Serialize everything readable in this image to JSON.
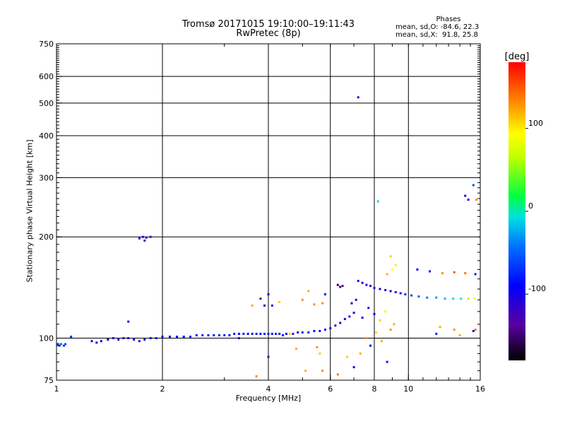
{
  "chart_data": {
    "type": "scatter",
    "title": "Tromsø 20171015 19:10:00–19:11:43",
    "subtitle": "RwPretec (8p)",
    "xlabel": "Frequency [MHz]",
    "ylabel": "Stationary phase Virtual Height [km]",
    "x_scale": "log",
    "y_scale": "log",
    "xlim": [
      1,
      16
    ],
    "ylim": [
      75,
      750
    ],
    "x_ticks": [
      1,
      2,
      4,
      6,
      8,
      10,
      16
    ],
    "x_tick_labels": [
      "1",
      "2",
      "4",
      "6",
      "8",
      "10",
      "16"
    ],
    "y_ticks": [
      75,
      100,
      200,
      300,
      400,
      500,
      600,
      750
    ],
    "y_tick_labels": [
      "75",
      "100",
      "200",
      "300",
      "400",
      "500",
      "600",
      "750"
    ],
    "grid": true,
    "phase_stats": {
      "title": "Phases",
      "line_o": "mean, sd,O: -84.6, 22.3",
      "line_x": "mean, sd,X:  91.8, 25.8"
    },
    "colorbar": {
      "label": "[deg]",
      "range": [
        -180,
        180
      ],
      "ticks": [
        100,
        0,
        -100
      ],
      "tick_labels": [
        "100",
        "0",
        "-100"
      ]
    },
    "echo_points": [
      {
        "x": 1.01,
        "y": 96,
        "phase": -70
      },
      {
        "x": 1.02,
        "y": 95,
        "phase": -60
      },
      {
        "x": 1.03,
        "y": 96,
        "phase": -50
      },
      {
        "x": 1.05,
        "y": 95,
        "phase": -70
      },
      {
        "x": 1.06,
        "y": 96,
        "phase": -60
      },
      {
        "x": 1.1,
        "y": 101,
        "phase": -70
      },
      {
        "x": 1.26,
        "y": 98,
        "phase": -100
      },
      {
        "x": 1.3,
        "y": 97,
        "phase": -110
      },
      {
        "x": 1.34,
        "y": 98,
        "phase": -100
      },
      {
        "x": 1.4,
        "y": 99,
        "phase": -90
      },
      {
        "x": 1.45,
        "y": 100,
        "phase": -100
      },
      {
        "x": 1.5,
        "y": 99,
        "phase": -110
      },
      {
        "x": 1.55,
        "y": 100,
        "phase": -100
      },
      {
        "x": 1.6,
        "y": 100,
        "phase": -90
      },
      {
        "x": 1.66,
        "y": 99,
        "phase": -100
      },
      {
        "x": 1.72,
        "y": 98,
        "phase": -110
      },
      {
        "x": 1.78,
        "y": 99,
        "phase": -100
      },
      {
        "x": 1.85,
        "y": 100,
        "phase": -90
      },
      {
        "x": 1.92,
        "y": 100,
        "phase": -100
      },
      {
        "x": 2.0,
        "y": 101,
        "phase": -90
      },
      {
        "x": 2.1,
        "y": 101,
        "phase": -95
      },
      {
        "x": 2.2,
        "y": 101,
        "phase": -100
      },
      {
        "x": 2.3,
        "y": 101,
        "phase": -90
      },
      {
        "x": 2.4,
        "y": 101,
        "phase": -80
      },
      {
        "x": 2.5,
        "y": 102,
        "phase": -90
      },
      {
        "x": 2.6,
        "y": 102,
        "phase": -85
      },
      {
        "x": 2.7,
        "y": 102,
        "phase": -80
      },
      {
        "x": 2.8,
        "y": 102,
        "phase": -90
      },
      {
        "x": 2.9,
        "y": 102,
        "phase": -85
      },
      {
        "x": 3.0,
        "y": 102,
        "phase": -80
      },
      {
        "x": 3.1,
        "y": 102,
        "phase": -90
      },
      {
        "x": 3.2,
        "y": 103,
        "phase": -85
      },
      {
        "x": 3.3,
        "y": 103,
        "phase": -90
      },
      {
        "x": 3.4,
        "y": 103,
        "phase": -80
      },
      {
        "x": 3.5,
        "y": 103,
        "phase": -90
      },
      {
        "x": 3.6,
        "y": 103,
        "phase": -85
      },
      {
        "x": 3.7,
        "y": 103,
        "phase": -80
      },
      {
        "x": 3.8,
        "y": 103,
        "phase": -90
      },
      {
        "x": 3.9,
        "y": 103,
        "phase": -85
      },
      {
        "x": 4.0,
        "y": 103,
        "phase": -80
      },
      {
        "x": 4.1,
        "y": 103,
        "phase": -90
      },
      {
        "x": 4.2,
        "y": 103,
        "phase": -85
      },
      {
        "x": 4.3,
        "y": 103,
        "phase": -80
      },
      {
        "x": 4.4,
        "y": 102,
        "phase": -90
      },
      {
        "x": 4.5,
        "y": 103,
        "phase": -85
      },
      {
        "x": 4.6,
        "y": 103,
        "phase": 110
      },
      {
        "x": 4.7,
        "y": 103,
        "phase": -80
      },
      {
        "x": 4.85,
        "y": 104,
        "phase": -90
      },
      {
        "x": 5.0,
        "y": 104,
        "phase": -85
      },
      {
        "x": 5.2,
        "y": 104,
        "phase": -80
      },
      {
        "x": 5.4,
        "y": 105,
        "phase": -90
      },
      {
        "x": 5.6,
        "y": 105,
        "phase": -85
      },
      {
        "x": 5.8,
        "y": 106,
        "phase": -90
      },
      {
        "x": 6.0,
        "y": 107,
        "phase": -100
      },
      {
        "x": 6.2,
        "y": 109,
        "phase": -110
      },
      {
        "x": 6.4,
        "y": 111,
        "phase": -100
      },
      {
        "x": 6.6,
        "y": 114,
        "phase": -110
      },
      {
        "x": 6.8,
        "y": 116,
        "phase": -100
      },
      {
        "x": 7.0,
        "y": 119,
        "phase": -110
      },
      {
        "x": 7.2,
        "y": 148,
        "phase": -110
      },
      {
        "x": 7.4,
        "y": 146,
        "phase": -100
      },
      {
        "x": 7.6,
        "y": 144,
        "phase": -110
      },
      {
        "x": 7.8,
        "y": 143,
        "phase": -100
      },
      {
        "x": 8.0,
        "y": 141,
        "phase": -110
      },
      {
        "x": 8.3,
        "y": 140,
        "phase": -100
      },
      {
        "x": 8.6,
        "y": 139,
        "phase": -110
      },
      {
        "x": 8.9,
        "y": 138,
        "phase": -100
      },
      {
        "x": 9.2,
        "y": 137,
        "phase": -90
      },
      {
        "x": 9.5,
        "y": 136,
        "phase": -80
      },
      {
        "x": 9.8,
        "y": 135,
        "phase": -70
      },
      {
        "x": 10.2,
        "y": 134,
        "phase": -60
      },
      {
        "x": 10.7,
        "y": 133,
        "phase": -50
      },
      {
        "x": 11.3,
        "y": 132,
        "phase": -40
      },
      {
        "x": 12.0,
        "y": 132,
        "phase": -30
      },
      {
        "x": 12.7,
        "y": 131,
        "phase": -20
      },
      {
        "x": 13.4,
        "y": 131,
        "phase": -10
      },
      {
        "x": 14.1,
        "y": 131,
        "phase": 0
      },
      {
        "x": 14.8,
        "y": 131,
        "phase": 60
      },
      {
        "x": 15.4,
        "y": 131,
        "phase": 90
      },
      {
        "x": 6.3,
        "y": 144,
        "phase": -160
      },
      {
        "x": 6.4,
        "y": 142,
        "phase": -150
      },
      {
        "x": 6.5,
        "y": 143,
        "phase": -140
      },
      {
        "x": 8.9,
        "y": 175,
        "phase": 110
      },
      {
        "x": 9.0,
        "y": 160,
        "phase": 90
      },
      {
        "x": 8.7,
        "y": 155,
        "phase": 120
      },
      {
        "x": 9.2,
        "y": 165,
        "phase": 100
      },
      {
        "x": 10.6,
        "y": 160,
        "phase": -90
      },
      {
        "x": 11.5,
        "y": 158,
        "phase": -80
      },
      {
        "x": 12.5,
        "y": 156,
        "phase": 130
      },
      {
        "x": 13.5,
        "y": 157,
        "phase": 150
      },
      {
        "x": 14.5,
        "y": 156,
        "phase": 140
      },
      {
        "x": 15.5,
        "y": 155,
        "phase": -80
      },
      {
        "x": 7.2,
        "y": 520,
        "phase": -100
      },
      {
        "x": 8.2,
        "y": 255,
        "phase": -10
      },
      {
        "x": 14.5,
        "y": 265,
        "phase": -110
      },
      {
        "x": 14.8,
        "y": 258,
        "phase": -100
      },
      {
        "x": 15.3,
        "y": 285,
        "phase": -60
      },
      {
        "x": 15.6,
        "y": 258,
        "phase": 130
      },
      {
        "x": 1.72,
        "y": 198,
        "phase": -110
      },
      {
        "x": 1.76,
        "y": 200,
        "phase": -100
      },
      {
        "x": 1.8,
        "y": 199,
        "phase": -110
      },
      {
        "x": 1.85,
        "y": 200,
        "phase": -120
      },
      {
        "x": 1.78,
        "y": 195,
        "phase": -130
      },
      {
        "x": 1.6,
        "y": 112,
        "phase": -100
      },
      {
        "x": 3.6,
        "y": 125,
        "phase": 120
      },
      {
        "x": 3.8,
        "y": 131,
        "phase": -130
      },
      {
        "x": 3.9,
        "y": 125,
        "phase": -110
      },
      {
        "x": 4.0,
        "y": 135,
        "phase": -90
      },
      {
        "x": 4.1,
        "y": 125,
        "phase": -100
      },
      {
        "x": 4.3,
        "y": 128,
        "phase": 110
      },
      {
        "x": 5.0,
        "y": 130,
        "phase": 130
      },
      {
        "x": 5.2,
        "y": 138,
        "phase": 120
      },
      {
        "x": 5.4,
        "y": 126,
        "phase": 130
      },
      {
        "x": 5.7,
        "y": 127,
        "phase": 130
      },
      {
        "x": 5.8,
        "y": 135,
        "phase": -90
      },
      {
        "x": 4.8,
        "y": 93,
        "phase": 120
      },
      {
        "x": 5.5,
        "y": 94,
        "phase": 130
      },
      {
        "x": 5.6,
        "y": 90,
        "phase": 110
      },
      {
        "x": 5.1,
        "y": 80,
        "phase": 120
      },
      {
        "x": 5.7,
        "y": 80,
        "phase": 130
      },
      {
        "x": 6.3,
        "y": 78,
        "phase": 140
      },
      {
        "x": 6.7,
        "y": 88,
        "phase": 110
      },
      {
        "x": 7.0,
        "y": 82,
        "phase": -100
      },
      {
        "x": 7.3,
        "y": 90,
        "phase": 120
      },
      {
        "x": 7.6,
        "y": 100,
        "phase": 130
      },
      {
        "x": 7.8,
        "y": 95,
        "phase": -90
      },
      {
        "x": 8.1,
        "y": 104,
        "phase": 110
      },
      {
        "x": 8.4,
        "y": 98,
        "phase": 120
      },
      {
        "x": 8.7,
        "y": 85,
        "phase": -80
      },
      {
        "x": 8.9,
        "y": 106,
        "phase": 130
      },
      {
        "x": 9.1,
        "y": 110,
        "phase": 120
      },
      {
        "x": 7.4,
        "y": 115,
        "phase": -100
      },
      {
        "x": 7.7,
        "y": 123,
        "phase": -110
      },
      {
        "x": 8.0,
        "y": 118,
        "phase": -90
      },
      {
        "x": 8.3,
        "y": 113,
        "phase": 110
      },
      {
        "x": 8.6,
        "y": 120,
        "phase": 100
      },
      {
        "x": 6.9,
        "y": 127,
        "phase": -100
      },
      {
        "x": 7.1,
        "y": 130,
        "phase": -110
      },
      {
        "x": 4.0,
        "y": 88,
        "phase": -120
      },
      {
        "x": 3.7,
        "y": 77,
        "phase": 130
      },
      {
        "x": 3.3,
        "y": 100,
        "phase": -100
      },
      {
        "x": 12.0,
        "y": 103,
        "phase": -80
      },
      {
        "x": 12.3,
        "y": 108,
        "phase": 120
      },
      {
        "x": 13.5,
        "y": 106,
        "phase": 130
      },
      {
        "x": 14.0,
        "y": 102,
        "phase": 120
      },
      {
        "x": 15.3,
        "y": 105,
        "phase": -90
      },
      {
        "x": 15.5,
        "y": 106,
        "phase": 140
      }
    ]
  }
}
